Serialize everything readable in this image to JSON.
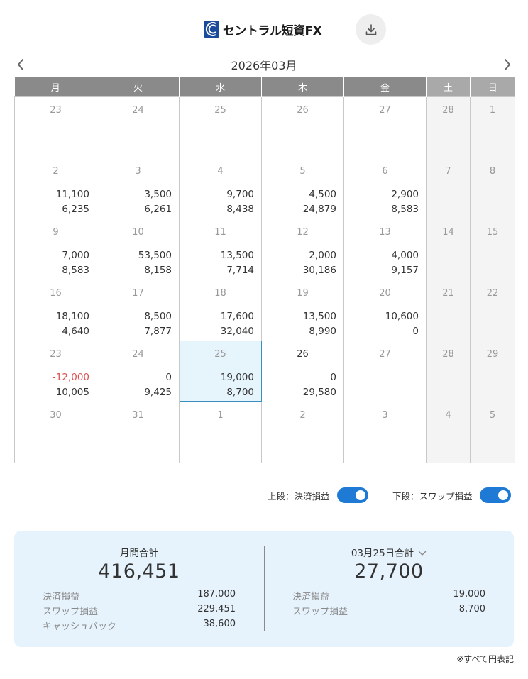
{
  "brand": {
    "name": "セントラル短資FX"
  },
  "icons": {
    "download": "download-icon",
    "prev": "chevron-left-icon",
    "next": "chevron-right-icon",
    "dropdown": "chevron-down-icon"
  },
  "month_title": "2026年03月",
  "weekdays": [
    "月",
    "火",
    "水",
    "木",
    "金",
    "土",
    "日"
  ],
  "weeks": [
    [
      {
        "day": "23",
        "top": "",
        "bottom": ""
      },
      {
        "day": "24",
        "top": "",
        "bottom": ""
      },
      {
        "day": "25",
        "top": "",
        "bottom": ""
      },
      {
        "day": "26",
        "top": "",
        "bottom": ""
      },
      {
        "day": "27",
        "top": "",
        "bottom": ""
      },
      {
        "day": "28",
        "top": "",
        "bottom": ""
      },
      {
        "day": "1",
        "top": "",
        "bottom": ""
      }
    ],
    [
      {
        "day": "2",
        "top": "11,100",
        "bottom": "6,235"
      },
      {
        "day": "3",
        "top": "3,500",
        "bottom": "6,261"
      },
      {
        "day": "4",
        "top": "9,700",
        "bottom": "8,438"
      },
      {
        "day": "5",
        "top": "4,500",
        "bottom": "24,879"
      },
      {
        "day": "6",
        "top": "2,900",
        "bottom": "8,583"
      },
      {
        "day": "7",
        "top": "",
        "bottom": ""
      },
      {
        "day": "8",
        "top": "",
        "bottom": ""
      }
    ],
    [
      {
        "day": "9",
        "top": "7,000",
        "bottom": "8,583"
      },
      {
        "day": "10",
        "top": "53,500",
        "bottom": "8,158"
      },
      {
        "day": "11",
        "top": "13,500",
        "bottom": "7,714"
      },
      {
        "day": "12",
        "top": "2,000",
        "bottom": "30,186"
      },
      {
        "day": "13",
        "top": "4,000",
        "bottom": "9,157"
      },
      {
        "day": "14",
        "top": "",
        "bottom": ""
      },
      {
        "day": "15",
        "top": "",
        "bottom": ""
      }
    ],
    [
      {
        "day": "16",
        "top": "18,100",
        "bottom": "4,640"
      },
      {
        "day": "17",
        "top": "8,500",
        "bottom": "7,877"
      },
      {
        "day": "18",
        "top": "17,600",
        "bottom": "32,040"
      },
      {
        "day": "19",
        "top": "13,500",
        "bottom": "8,990"
      },
      {
        "day": "20",
        "top": "10,600",
        "bottom": "0"
      },
      {
        "day": "21",
        "top": "",
        "bottom": ""
      },
      {
        "day": "22",
        "top": "",
        "bottom": ""
      }
    ],
    [
      {
        "day": "23",
        "top": "-12,000",
        "bottom": "10,005",
        "negative": true
      },
      {
        "day": "24",
        "top": "0",
        "bottom": "9,425"
      },
      {
        "day": "25",
        "top": "19,000",
        "bottom": "8,700",
        "today": true
      },
      {
        "day": "26",
        "top": "0",
        "bottom": "29,580",
        "dark": true
      },
      {
        "day": "27",
        "top": "",
        "bottom": ""
      },
      {
        "day": "28",
        "top": "",
        "bottom": ""
      },
      {
        "day": "29",
        "top": "",
        "bottom": ""
      }
    ],
    [
      {
        "day": "30",
        "top": "",
        "bottom": ""
      },
      {
        "day": "31",
        "top": "",
        "bottom": ""
      },
      {
        "day": "1",
        "top": "",
        "bottom": ""
      },
      {
        "day": "2",
        "top": "",
        "bottom": ""
      },
      {
        "day": "3",
        "top": "",
        "bottom": ""
      },
      {
        "day": "4",
        "top": "",
        "bottom": ""
      },
      {
        "day": "5",
        "top": "",
        "bottom": ""
      }
    ]
  ],
  "toggles": {
    "upper": {
      "label": "上段：決済損益",
      "on": true
    },
    "lower": {
      "label": "下段：スワップ損益",
      "on": true
    }
  },
  "colors": {
    "accent": "#1f7ad6",
    "negative": "#e05050",
    "summary_bg": "#e6f3fc",
    "header_bg": "#8a8a8a"
  },
  "summary": {
    "monthly": {
      "heading": "月間合計",
      "total": "416,451",
      "rows": [
        {
          "label": "決済損益",
          "value": "187,000"
        },
        {
          "label": "スワップ損益",
          "value": "229,451"
        },
        {
          "label": "キャッシュバック",
          "value": "38,600"
        }
      ]
    },
    "daily": {
      "heading": "03月25日合計",
      "total": "27,700",
      "rows": [
        {
          "label": "決済損益",
          "value": "19,000"
        },
        {
          "label": "スワップ損益",
          "value": "8,700"
        }
      ]
    }
  },
  "footnote": "※すべて円表記"
}
